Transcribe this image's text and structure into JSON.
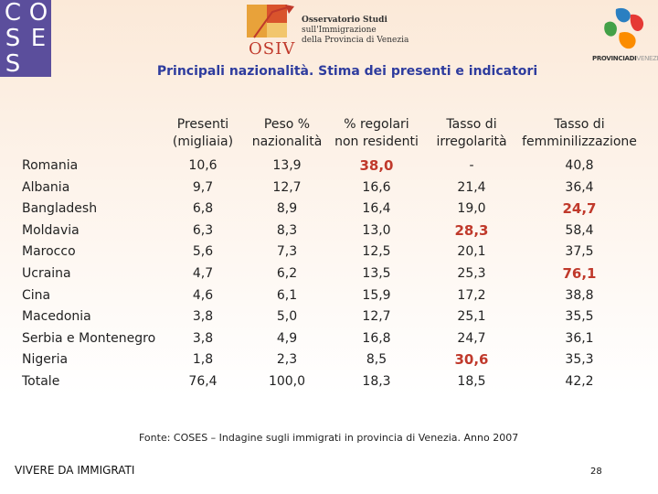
{
  "logos": {
    "coses_letters": [
      "C",
      "O",
      "S",
      "E",
      "S",
      ""
    ],
    "osiv_word": "OSIV",
    "osiv_lines": [
      "Osservatorio Studi",
      "sull'Immigrazione",
      "della Provincia di Venezia"
    ],
    "provincia_bold": "PROVINCIADI",
    "provincia_light": "VENEZIA"
  },
  "title": "Principali nazionalità. Stima dei presenti e indicatori",
  "table": {
    "headers": [
      [
        "Presenti",
        "(migliaia)"
      ],
      [
        "Peso %",
        "nazionalità"
      ],
      [
        "% regolari",
        "non residenti"
      ],
      [
        "Tasso di",
        "irregolarità"
      ],
      [
        "Tasso di",
        "femminilizzazione"
      ]
    ],
    "rows": [
      {
        "label": "Romania",
        "values": [
          "10,6",
          "13,9",
          "38,0",
          "-",
          "40,8"
        ],
        "highlight": [
          false,
          false,
          true,
          false,
          false
        ]
      },
      {
        "label": "Albania",
        "values": [
          "9,7",
          "12,7",
          "16,6",
          "21,4",
          "36,4"
        ],
        "highlight": [
          false,
          false,
          false,
          false,
          false
        ]
      },
      {
        "label": "Bangladesh",
        "values": [
          "6,8",
          "8,9",
          "16,4",
          "19,0",
          "24,7"
        ],
        "highlight": [
          false,
          false,
          false,
          false,
          true
        ]
      },
      {
        "label": "Moldavia",
        "values": [
          "6,3",
          "8,3",
          "13,0",
          "28,3",
          "58,4"
        ],
        "highlight": [
          false,
          false,
          false,
          true,
          false
        ]
      },
      {
        "label": "Marocco",
        "values": [
          "5,6",
          "7,3",
          "12,5",
          "20,1",
          "37,5"
        ],
        "highlight": [
          false,
          false,
          false,
          false,
          false
        ]
      },
      {
        "label": "Ucraina",
        "values": [
          "4,7",
          "6,2",
          "13,5",
          "25,3",
          "76,1"
        ],
        "highlight": [
          false,
          false,
          false,
          false,
          true
        ]
      },
      {
        "label": "Cina",
        "values": [
          "4,6",
          "6,1",
          "15,9",
          "17,2",
          "38,8"
        ],
        "highlight": [
          false,
          false,
          false,
          false,
          false
        ]
      },
      {
        "label": "Macedonia",
        "values": [
          "3,8",
          "5,0",
          "12,7",
          "25,1",
          "35,5"
        ],
        "highlight": [
          false,
          false,
          false,
          false,
          false
        ]
      },
      {
        "label": "Serbia e Montenegro",
        "values": [
          "3,8",
          "4,9",
          "16,8",
          "24,7",
          "36,1"
        ],
        "highlight": [
          false,
          false,
          false,
          false,
          false
        ]
      },
      {
        "label": "Nigeria",
        "values": [
          "1,8",
          "2,3",
          "8,5",
          "30,6",
          "35,3"
        ],
        "highlight": [
          false,
          false,
          false,
          true,
          false
        ]
      },
      {
        "label": "Totale",
        "values": [
          "76,4",
          "100,0",
          "18,3",
          "18,5",
          "42,2"
        ],
        "highlight": [
          false,
          false,
          false,
          false,
          false
        ]
      }
    ]
  },
  "footnote": "Fonte: COSES – Indagine sugli immigrati in provincia di Venezia. Anno 2007",
  "footer_left": "VIVERE DA IMMIGRATI",
  "page_number": "28",
  "colors": {
    "title": "#2e3c9e",
    "highlight": "#c0392b",
    "coses_bg": "#5b4e9c"
  }
}
